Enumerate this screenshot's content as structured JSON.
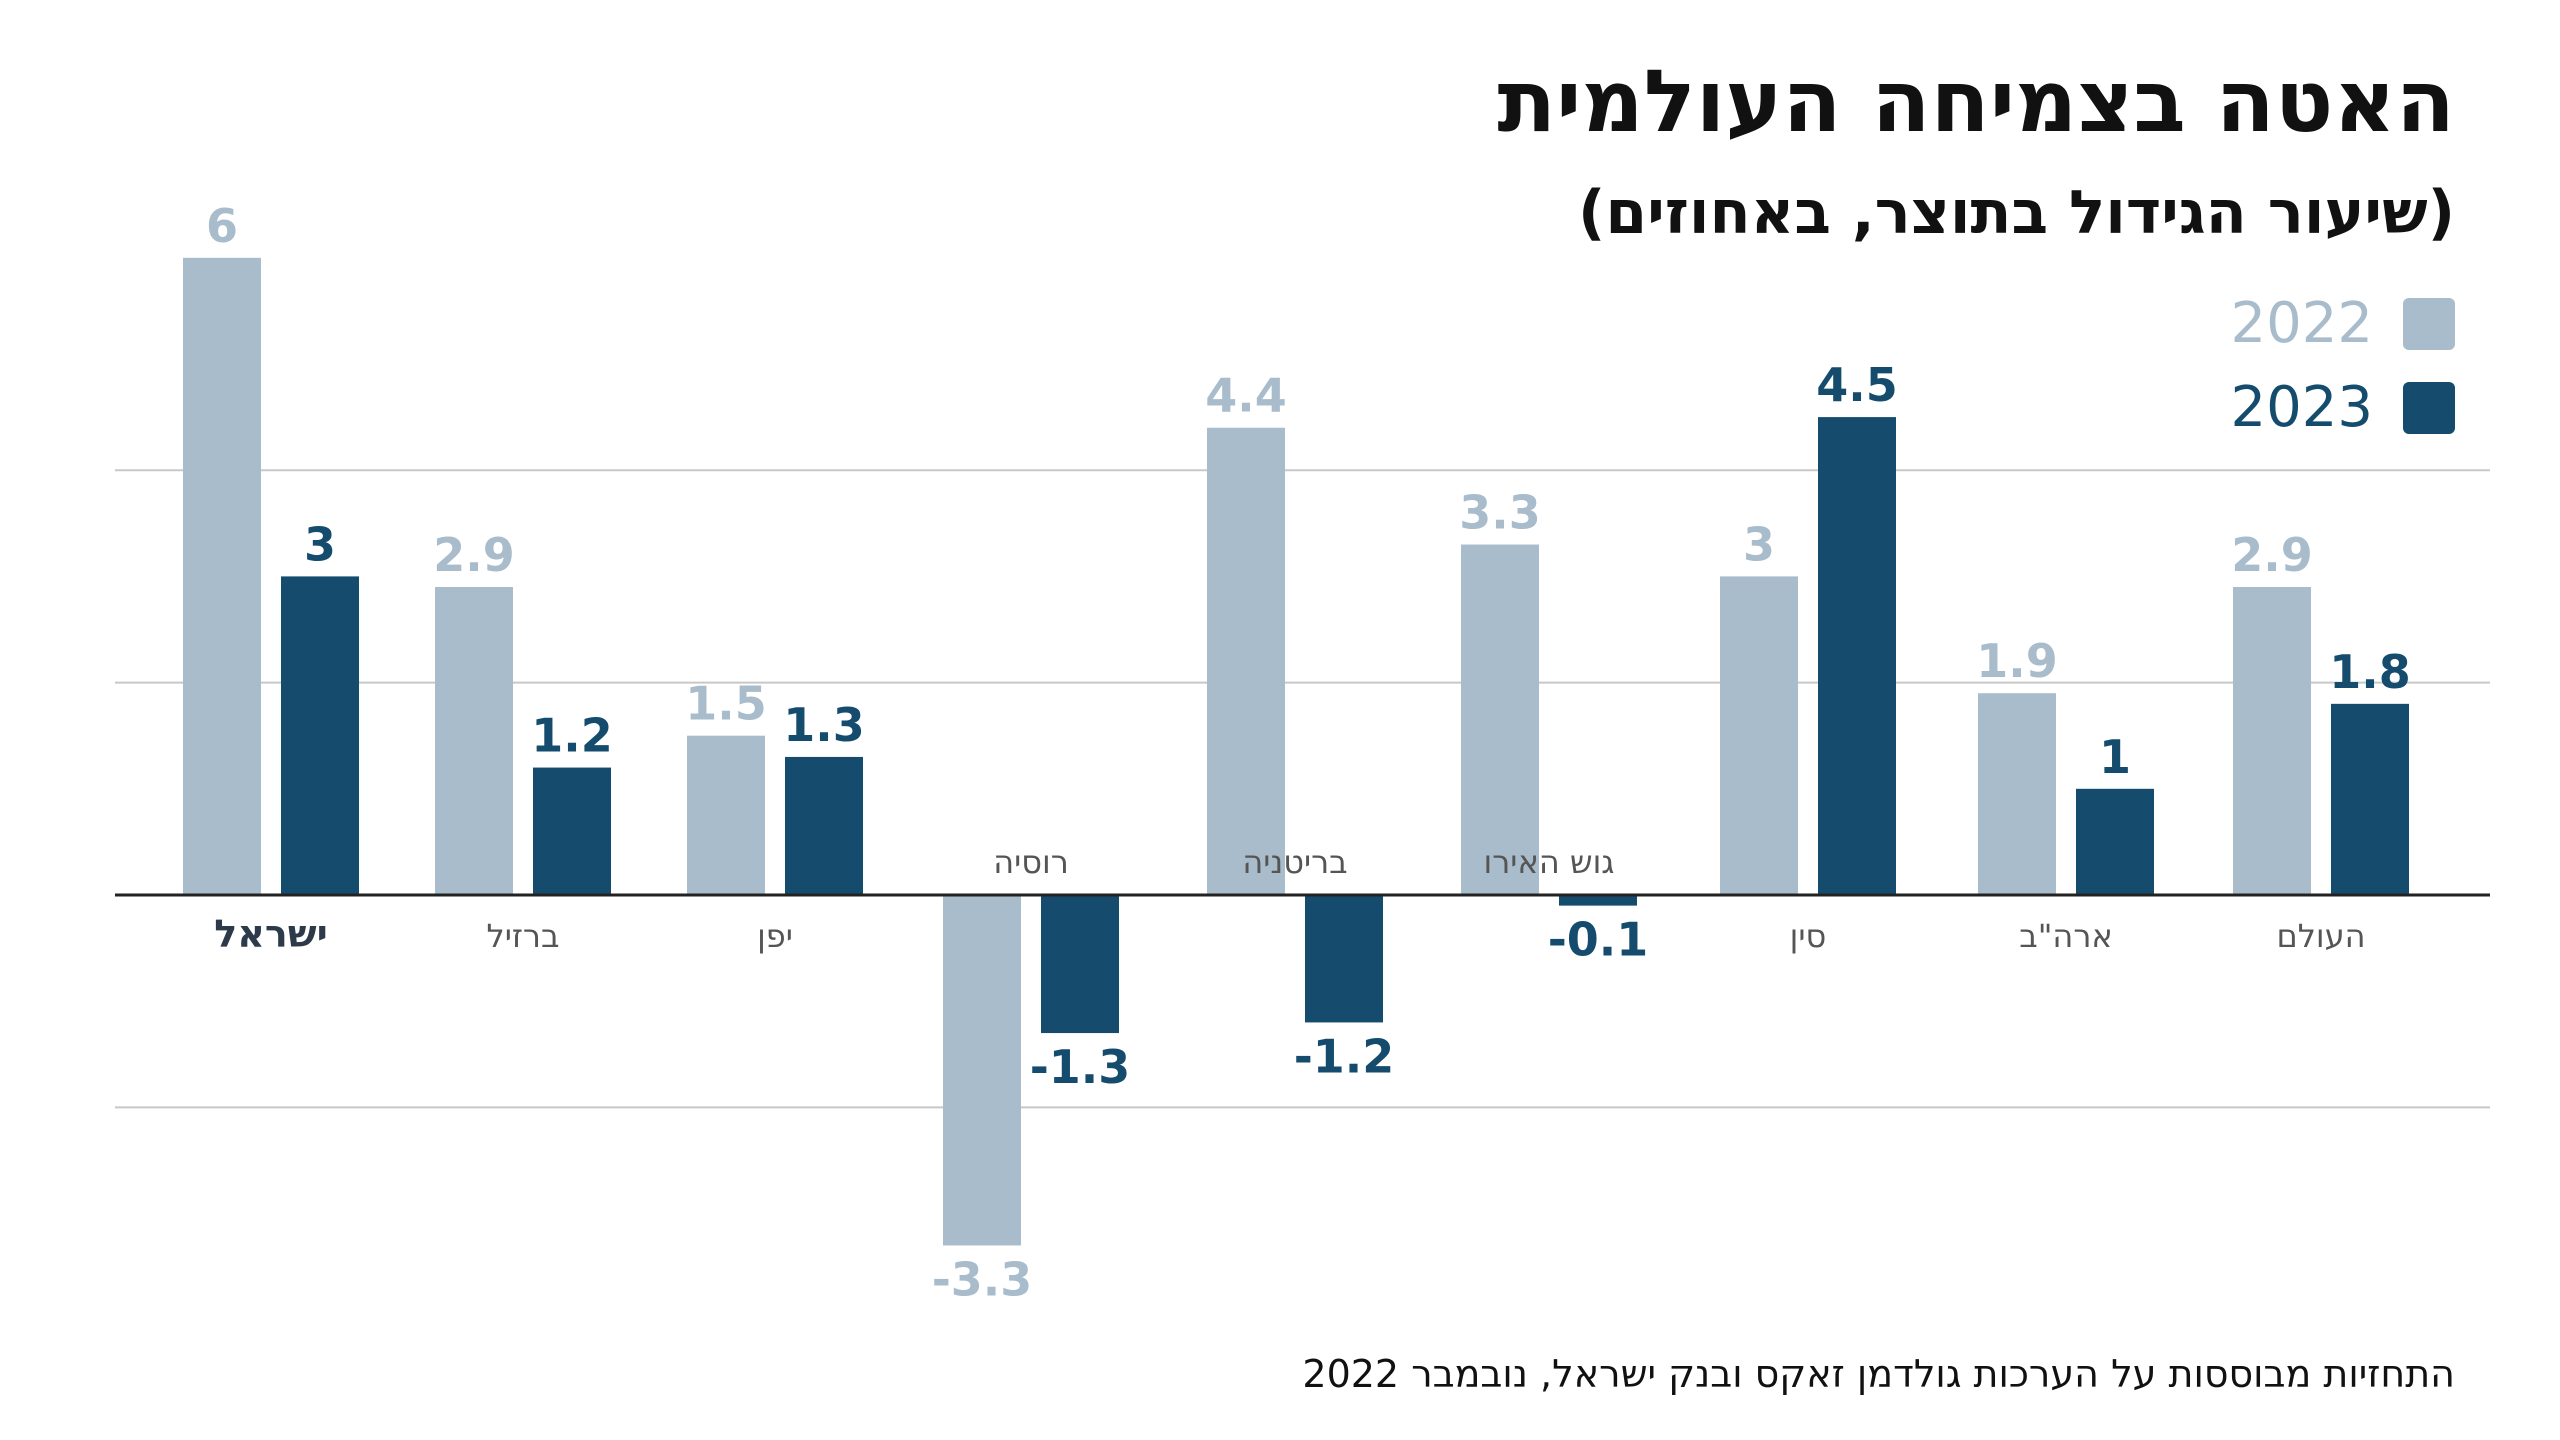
{
  "header": {
    "title": "האטה בצמיחה העולמית",
    "subtitle": "(שיעור הגידול בתוצר, באחוזים)"
  },
  "legend": {
    "items": [
      {
        "label": "2022",
        "color": "#a8bccb"
      },
      {
        "label": "2023",
        "color": "#154c6e"
      }
    ]
  },
  "footnote": "התחזיות מבוססות על הערכות גולדמן זאקס ובנק ישראל, נובמבר 2022",
  "chart_data": {
    "type": "bar",
    "title": "האטה בצמיחה העולמית",
    "subtitle": "(שיעור הגידול בתוצר, באחוזים)",
    "categories": [
      "ישראל",
      "ברזיל",
      "יפן",
      "רוסיה",
      "בריטניה",
      "גוש האירו",
      "סין",
      "ארה\"ב",
      "העולם"
    ],
    "highlight_category": "ישראל",
    "series": [
      {
        "name": "2022",
        "color": "#a8bccb",
        "values": [
          6,
          2.9,
          1.5,
          -3.3,
          4.4,
          3.3,
          3,
          1.9,
          2.9
        ]
      },
      {
        "name": "2023",
        "color": "#154c6e",
        "values": [
          3,
          1.2,
          1.3,
          -1.3,
          -1.2,
          -0.1,
          4.5,
          1,
          1.8
        ]
      }
    ],
    "ylim": [
      -4,
      6
    ],
    "grid": true,
    "legend_position": "top-right",
    "xlabel": "",
    "ylabel": ""
  }
}
